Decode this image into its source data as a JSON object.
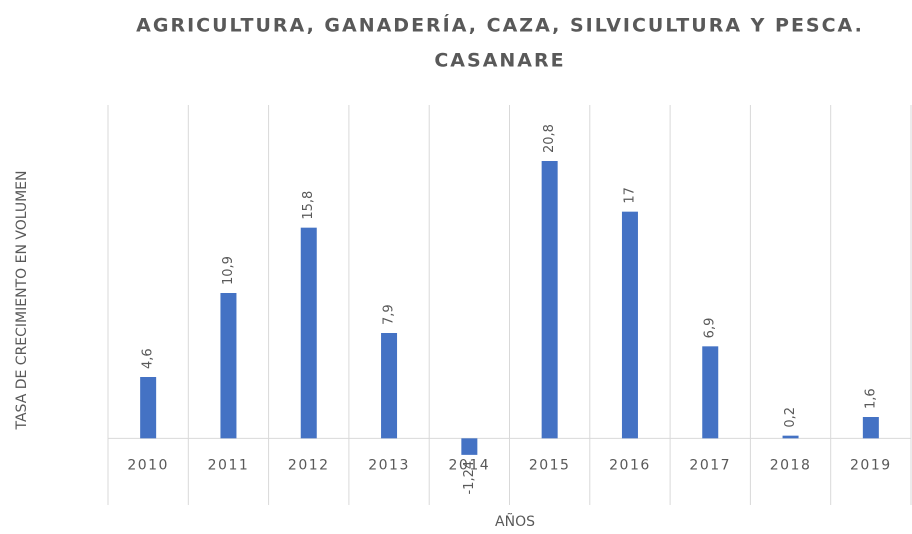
{
  "chart_data": {
    "type": "bar",
    "title": [
      "AGRICULTURA, GANADERÍA, CAZA, SILVICULTURA Y PESCA.",
      "CASANARE"
    ],
    "y_label": "TASA DE CRECIMIENTO EN VOLUMEN",
    "x_label": "AÑOS",
    "categories": [
      "2010",
      "2011",
      "2012",
      "2013",
      "2014",
      "2015",
      "2016",
      "2017",
      "2018",
      "2019"
    ],
    "values": [
      4.6,
      10.9,
      15.8,
      7.9,
      -1.24,
      20.8,
      17,
      6.9,
      0.2,
      1.6
    ],
    "value_labels": [
      "4,6",
      "10,9",
      "15,8",
      "7,9",
      "-1,24",
      "20,8",
      "17",
      "6,9",
      "0,2",
      "1,6"
    ],
    "color": "#4472c4",
    "ylim": [
      -5,
      25
    ]
  }
}
